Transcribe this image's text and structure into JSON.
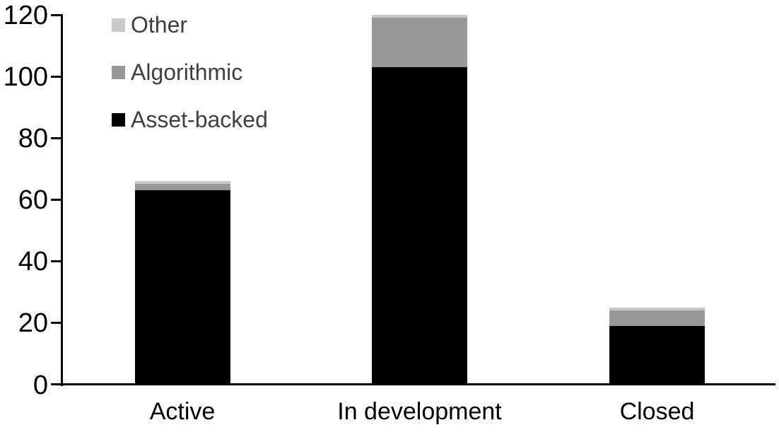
{
  "chart_data": {
    "type": "bar",
    "subtype": "stacked-vertical",
    "title": "",
    "xlabel": "",
    "ylabel": "",
    "categories": [
      "Active",
      "In development",
      "Closed"
    ],
    "series": [
      {
        "name": "Asset-backed",
        "color": "#000000",
        "values": [
          63,
          103,
          19
        ]
      },
      {
        "name": "Algorithmic",
        "color": "#989898",
        "values": [
          2,
          16,
          5
        ]
      },
      {
        "name": "Other",
        "color": "#c9c9c9",
        "values": [
          1,
          1,
          1
        ]
      }
    ],
    "totals": [
      66,
      120,
      25
    ],
    "ylim": [
      0,
      120
    ],
    "yticks": [
      0,
      20,
      40,
      60,
      80,
      100,
      120
    ],
    "grid": false,
    "legend": {
      "position": "top-left-inside",
      "order_top_to_bottom": [
        "Other",
        "Algorithmic",
        "Asset-backed"
      ],
      "text_color": "#3f3f3f"
    },
    "axis_color": "#000000"
  }
}
